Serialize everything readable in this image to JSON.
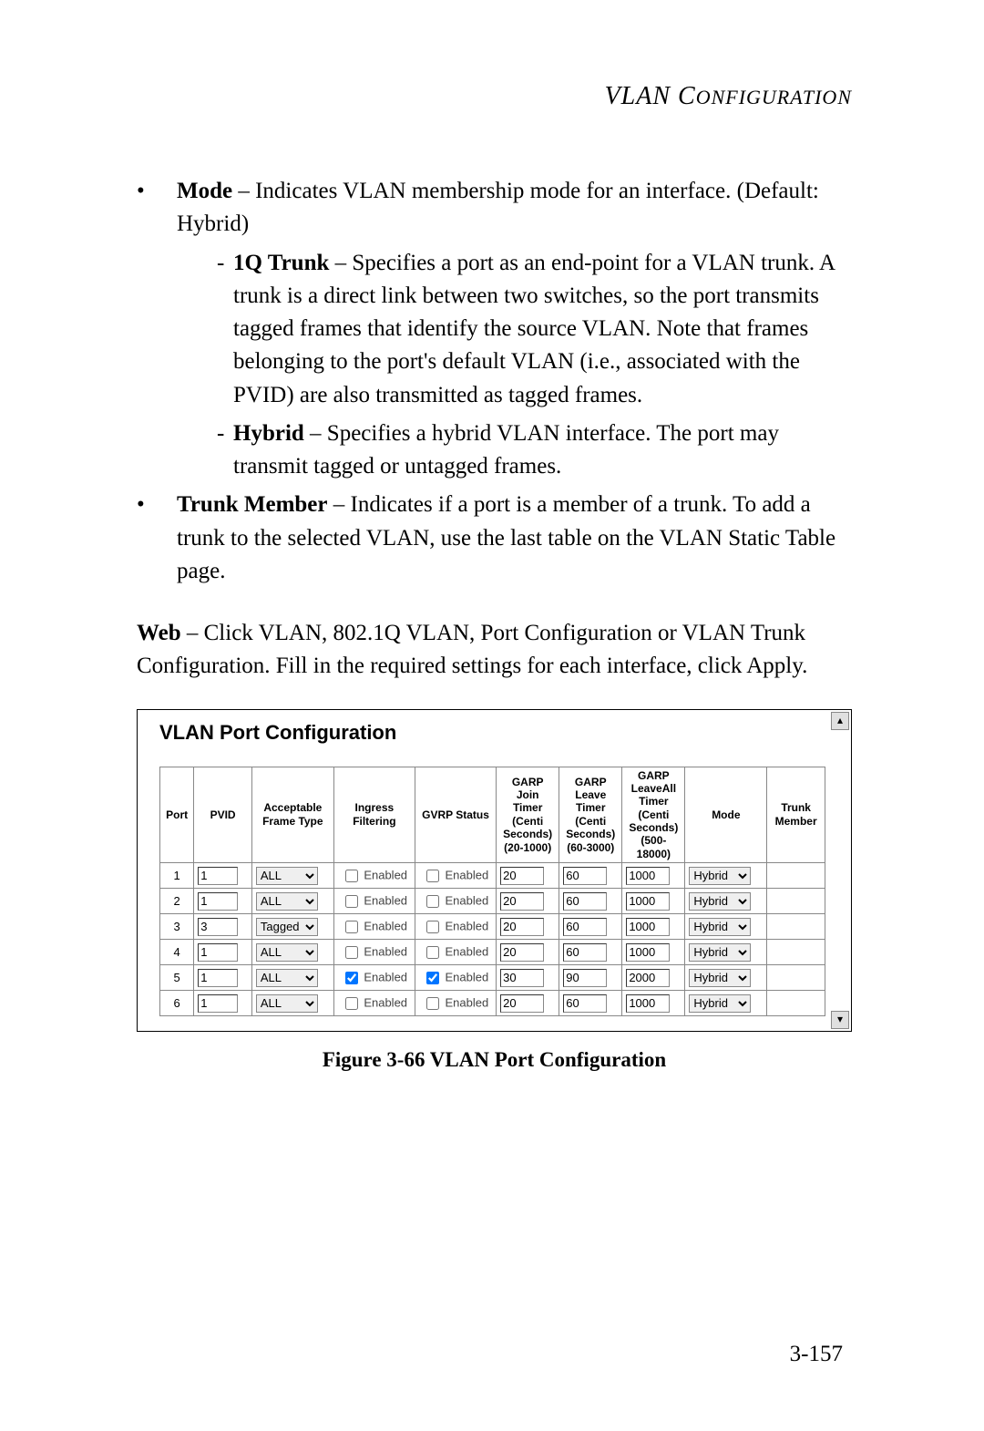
{
  "header": {
    "main": "VLAN C",
    "smallcaps": "ONFIGURATION"
  },
  "bullets": {
    "mode_label": "Mode",
    "mode_text": " – Indicates VLAN membership mode for an interface. (Default: Hybrid)",
    "trunk_label": "1Q Trunk",
    "trunk_text": " – Specifies a port as an end-point for a VLAN trunk. A trunk is a direct link between two switches, so the port transmits tagged frames that identify the source VLAN. Note that frames belonging to the port's default VLAN (i.e., associated with the PVID) are also transmitted as tagged frames.",
    "hybrid_label": "Hybrid",
    "hybrid_text": " – Specifies a hybrid VLAN interface. The port may transmit tagged or untagged frames.",
    "trunkmember_label": "Trunk Member",
    "trunkmember_text": " – Indicates if a port is a member of a trunk. To add a trunk to the selected VLAN, use the last table on the VLAN Static Table page."
  },
  "web_para": {
    "web_label": "Web",
    "web_text": " – Click VLAN, 802.1Q VLAN, Port Configuration or VLAN Trunk Configuration. Fill in the required settings for each interface, click Apply."
  },
  "screenshot": {
    "title": "VLAN Port Configuration",
    "columns": {
      "port": "Port",
      "pvid": "PVID",
      "frame": "Acceptable Frame Type",
      "ingress": "Ingress Filtering",
      "gvrp": "GVRP Status",
      "join": "GARP Join Timer (Centi Seconds) (20-1000)",
      "leave": "GARP Leave Timer (Centi Seconds) (60-3000)",
      "leaveall": "GARP LeaveAll Timer (Centi Seconds) (500-18000)",
      "mode": "Mode",
      "trunk": "Trunk Member"
    },
    "enabled_label": "Enabled",
    "rows": [
      {
        "port": "1",
        "pvid": "1",
        "frame": "ALL",
        "ingress": false,
        "gvrp": false,
        "join": "20",
        "leave": "60",
        "leaveall": "1000",
        "mode": "Hybrid",
        "trunk": ""
      },
      {
        "port": "2",
        "pvid": "1",
        "frame": "ALL",
        "ingress": false,
        "gvrp": false,
        "join": "20",
        "leave": "60",
        "leaveall": "1000",
        "mode": "Hybrid",
        "trunk": ""
      },
      {
        "port": "3",
        "pvid": "3",
        "frame": "Tagged",
        "ingress": false,
        "gvrp": false,
        "join": "20",
        "leave": "60",
        "leaveall": "1000",
        "mode": "Hybrid",
        "trunk": ""
      },
      {
        "port": "4",
        "pvid": "1",
        "frame": "ALL",
        "ingress": false,
        "gvrp": false,
        "join": "20",
        "leave": "60",
        "leaveall": "1000",
        "mode": "Hybrid",
        "trunk": ""
      },
      {
        "port": "5",
        "pvid": "1",
        "frame": "ALL",
        "ingress": true,
        "gvrp": true,
        "join": "30",
        "leave": "90",
        "leaveall": "2000",
        "mode": "Hybrid",
        "trunk": ""
      },
      {
        "port": "6",
        "pvid": "1",
        "frame": "ALL",
        "ingress": false,
        "gvrp": false,
        "join": "20",
        "leave": "60",
        "leaveall": "1000",
        "mode": "Hybrid",
        "trunk": ""
      }
    ],
    "col_widths": {
      "port": "34px",
      "pvid": "58px",
      "frame": "82px",
      "ingress": "78px",
      "gvrp": "78px",
      "join": "60px",
      "leave": "60px",
      "leaveall": "60px",
      "mode": "82px",
      "trunk": "58px"
    }
  },
  "caption": "Figure 3-66  VLAN Port Configuration",
  "pagenum": "3-157",
  "colors": {
    "text": "#000000",
    "border": "#888888",
    "bg": "#ffffff"
  }
}
